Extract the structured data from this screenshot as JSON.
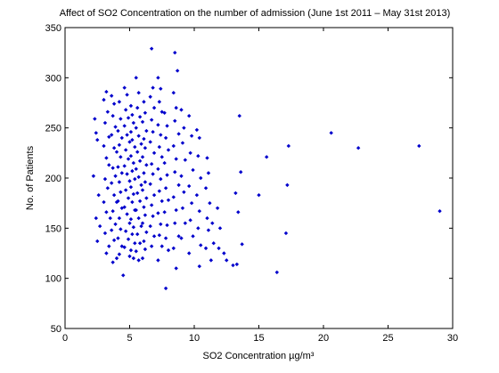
{
  "chart_data": {
    "type": "scatter",
    "title": "Affect of SO2 Concentration on the number of admission (June 1st 2011 – May 31st 2013)",
    "xlabel": "SO2 Concentration µg/m³",
    "ylabel": "No. of Patients",
    "xlim": [
      0,
      30
    ],
    "ylim": [
      50,
      350
    ],
    "xticks": [
      "0",
      "5",
      "10",
      "15",
      "20",
      "25",
      "30"
    ],
    "yticks": [
      "50",
      "100",
      "150",
      "200",
      "250",
      "300",
      "350"
    ],
    "grid": false,
    "marker_color": "#0000cc",
    "points": [
      [
        2.3,
        259
      ],
      [
        2.4,
        245
      ],
      [
        2.5,
        238
      ],
      [
        2.2,
        202
      ],
      [
        2.6,
        183
      ],
      [
        2.4,
        160
      ],
      [
        2.5,
        137
      ],
      [
        2.7,
        152
      ],
      [
        3.0,
        278
      ],
      [
        3.2,
        286
      ],
      [
        3.3,
        266
      ],
      [
        3.1,
        255
      ],
      [
        3.4,
        241
      ],
      [
        3.0,
        232
      ],
      [
        3.2,
        220
      ],
      [
        3.4,
        213
      ],
      [
        3.1,
        199
      ],
      [
        3.3,
        190
      ],
      [
        3.0,
        176
      ],
      [
        3.2,
        166
      ],
      [
        3.5,
        160
      ],
      [
        3.1,
        145
      ],
      [
        3.4,
        132
      ],
      [
        3.2,
        125
      ],
      [
        3.6,
        282
      ],
      [
        3.8,
        274
      ],
      [
        3.7,
        262
      ],
      [
        3.9,
        251
      ],
      [
        3.6,
        243
      ],
      [
        3.8,
        230
      ],
      [
        4.0,
        226
      ],
      [
        3.7,
        210
      ],
      [
        3.9,
        202
      ],
      [
        3.6,
        195
      ],
      [
        3.8,
        183
      ],
      [
        4.0,
        176
      ],
      [
        3.7,
        167
      ],
      [
        3.9,
        154
      ],
      [
        3.6,
        148
      ],
      [
        3.8,
        138
      ],
      [
        3.7,
        116
      ],
      [
        4.0,
        120
      ],
      [
        4.2,
        276
      ],
      [
        4.3,
        259
      ],
      [
        4.1,
        247
      ],
      [
        4.4,
        240
      ],
      [
        4.2,
        233
      ],
      [
        4.3,
        221
      ],
      [
        4.1,
        211
      ],
      [
        4.4,
        205
      ],
      [
        4.2,
        196
      ],
      [
        4.3,
        186
      ],
      [
        4.1,
        177
      ],
      [
        4.4,
        170
      ],
      [
        4.2,
        160
      ],
      [
        4.3,
        149
      ],
      [
        4.1,
        140
      ],
      [
        4.4,
        132
      ],
      [
        4.2,
        124
      ],
      [
        4.5,
        103
      ],
      [
        4.6,
        290
      ],
      [
        4.8,
        283
      ],
      [
        4.7,
        268
      ],
      [
        4.9,
        260
      ],
      [
        4.6,
        252
      ],
      [
        4.8,
        243
      ],
      [
        5.0,
        236
      ],
      [
        4.7,
        228
      ],
      [
        4.9,
        219
      ],
      [
        4.6,
        212
      ],
      [
        4.8,
        204
      ],
      [
        5.0,
        197
      ],
      [
        4.7,
        188
      ],
      [
        4.9,
        180
      ],
      [
        4.6,
        171
      ],
      [
        4.8,
        164
      ],
      [
        5.0,
        155
      ],
      [
        4.7,
        147
      ],
      [
        4.9,
        139
      ],
      [
        4.6,
        131
      ],
      [
        5.0,
        122
      ],
      [
        5.1,
        272
      ],
      [
        5.2,
        263
      ],
      [
        5.3,
        255
      ],
      [
        5.1,
        246
      ],
      [
        5.2,
        238
      ],
      [
        5.4,
        231
      ],
      [
        5.1,
        222
      ],
      [
        5.3,
        215
      ],
      [
        5.2,
        207
      ],
      [
        5.4,
        199
      ],
      [
        5.1,
        191
      ],
      [
        5.3,
        184
      ],
      [
        5.2,
        176
      ],
      [
        5.4,
        168
      ],
      [
        5.1,
        159
      ],
      [
        5.3,
        151
      ],
      [
        5.2,
        144
      ],
      [
        5.4,
        135
      ],
      [
        5.1,
        128
      ],
      [
        5.3,
        120
      ],
      [
        5.5,
        300
      ],
      [
        5.7,
        285
      ],
      [
        5.6,
        270
      ],
      [
        5.8,
        261
      ],
      [
        5.5,
        250
      ],
      [
        5.7,
        242
      ],
      [
        5.9,
        234
      ],
      [
        5.6,
        226
      ],
      [
        5.8,
        217
      ],
      [
        5.5,
        209
      ],
      [
        5.7,
        201
      ],
      [
        5.9,
        193
      ],
      [
        5.6,
        185
      ],
      [
        5.8,
        177
      ],
      [
        5.5,
        168
      ],
      [
        5.7,
        160
      ],
      [
        5.9,
        152
      ],
      [
        5.6,
        144
      ],
      [
        5.8,
        135
      ],
      [
        5.5,
        127
      ],
      [
        5.7,
        118
      ],
      [
        6.1,
        276
      ],
      [
        6.2,
        265
      ],
      [
        6.0,
        256
      ],
      [
        6.3,
        247
      ],
      [
        6.1,
        239
      ],
      [
        6.2,
        230
      ],
      [
        6.0,
        221
      ],
      [
        6.3,
        213
      ],
      [
        6.1,
        205
      ],
      [
        6.2,
        196
      ],
      [
        6.0,
        188
      ],
      [
        6.3,
        180
      ],
      [
        6.1,
        171
      ],
      [
        6.2,
        163
      ],
      [
        6.0,
        155
      ],
      [
        6.3,
        146
      ],
      [
        6.1,
        137
      ],
      [
        6.2,
        129
      ],
      [
        6.0,
        120
      ],
      [
        6.7,
        329
      ],
      [
        6.8,
        290
      ],
      [
        6.6,
        281
      ],
      [
        6.9,
        270
      ],
      [
        6.7,
        258
      ],
      [
        6.8,
        246
      ],
      [
        6.6,
        236
      ],
      [
        6.9,
        225
      ],
      [
        6.7,
        214
      ],
      [
        6.8,
        204
      ],
      [
        6.6,
        194
      ],
      [
        6.9,
        183
      ],
      [
        6.7,
        173
      ],
      [
        6.8,
        162
      ],
      [
        6.6,
        152
      ],
      [
        6.9,
        142
      ],
      [
        6.7,
        132
      ],
      [
        7.2,
        300
      ],
      [
        7.4,
        289
      ],
      [
        7.3,
        276
      ],
      [
        7.5,
        266
      ],
      [
        7.2,
        253
      ],
      [
        7.4,
        243
      ],
      [
        7.3,
        231
      ],
      [
        7.5,
        221
      ],
      [
        7.2,
        209
      ],
      [
        7.4,
        199
      ],
      [
        7.3,
        187
      ],
      [
        7.5,
        177
      ],
      [
        7.2,
        165
      ],
      [
        7.4,
        154
      ],
      [
        7.3,
        143
      ],
      [
        7.5,
        132
      ],
      [
        7.2,
        118
      ],
      [
        7.7,
        265
      ],
      [
        7.9,
        252
      ],
      [
        7.8,
        240
      ],
      [
        8.0,
        228
      ],
      [
        7.7,
        215
      ],
      [
        7.9,
        203
      ],
      [
        7.8,
        190
      ],
      [
        8.0,
        178
      ],
      [
        7.7,
        166
      ],
      [
        7.9,
        153
      ],
      [
        7.8,
        140
      ],
      [
        8.0,
        128
      ],
      [
        7.8,
        90
      ],
      [
        8.5,
        325
      ],
      [
        8.7,
        307
      ],
      [
        8.4,
        285
      ],
      [
        8.6,
        270
      ],
      [
        8.5,
        257
      ],
      [
        8.8,
        244
      ],
      [
        8.4,
        232
      ],
      [
        8.6,
        219
      ],
      [
        8.5,
        206
      ],
      [
        8.8,
        193
      ],
      [
        8.4,
        181
      ],
      [
        8.6,
        168
      ],
      [
        8.5,
        155
      ],
      [
        8.8,
        142
      ],
      [
        8.4,
        130
      ],
      [
        8.6,
        110
      ],
      [
        9.0,
        268
      ],
      [
        9.2,
        250
      ],
      [
        9.1,
        235
      ],
      [
        9.3,
        218
      ],
      [
        9.0,
        202
      ],
      [
        9.2,
        186
      ],
      [
        9.1,
        170
      ],
      [
        9.3,
        155
      ],
      [
        9.0,
        140
      ],
      [
        9.6,
        262
      ],
      [
        9.8,
        242
      ],
      [
        9.7,
        225
      ],
      [
        9.9,
        208
      ],
      [
        9.6,
        192
      ],
      [
        9.8,
        175
      ],
      [
        9.7,
        158
      ],
      [
        9.9,
        142
      ],
      [
        9.6,
        125
      ],
      [
        10.2,
        248
      ],
      [
        10.4,
        240
      ],
      [
        10.3,
        222
      ],
      [
        10.5,
        200
      ],
      [
        10.2,
        183
      ],
      [
        10.4,
        167
      ],
      [
        10.3,
        150
      ],
      [
        10.5,
        133
      ],
      [
        10.4,
        112
      ],
      [
        11.0,
        220
      ],
      [
        11.1,
        205
      ],
      [
        10.9,
        190
      ],
      [
        11.2,
        175
      ],
      [
        11.0,
        160
      ],
      [
        11.1,
        148
      ],
      [
        10.9,
        130
      ],
      [
        11.4,
        155
      ],
      [
        11.5,
        135
      ],
      [
        11.3,
        118
      ],
      [
        11.8,
        170
      ],
      [
        12.0,
        150
      ],
      [
        11.9,
        130
      ],
      [
        12.3,
        125
      ],
      [
        12.5,
        118
      ],
      [
        13.0,
        113
      ],
      [
        13.3,
        114
      ],
      [
        13.2,
        185
      ],
      [
        13.5,
        262
      ],
      [
        13.6,
        206
      ],
      [
        13.4,
        166
      ],
      [
        13.7,
        134
      ],
      [
        15.0,
        183
      ],
      [
        15.6,
        221
      ],
      [
        16.4,
        106
      ],
      [
        17.1,
        145
      ],
      [
        17.2,
        193
      ],
      [
        17.3,
        232
      ],
      [
        20.6,
        245
      ],
      [
        22.7,
        230
      ],
      [
        27.4,
        232
      ],
      [
        29.0,
        167
      ]
    ]
  }
}
